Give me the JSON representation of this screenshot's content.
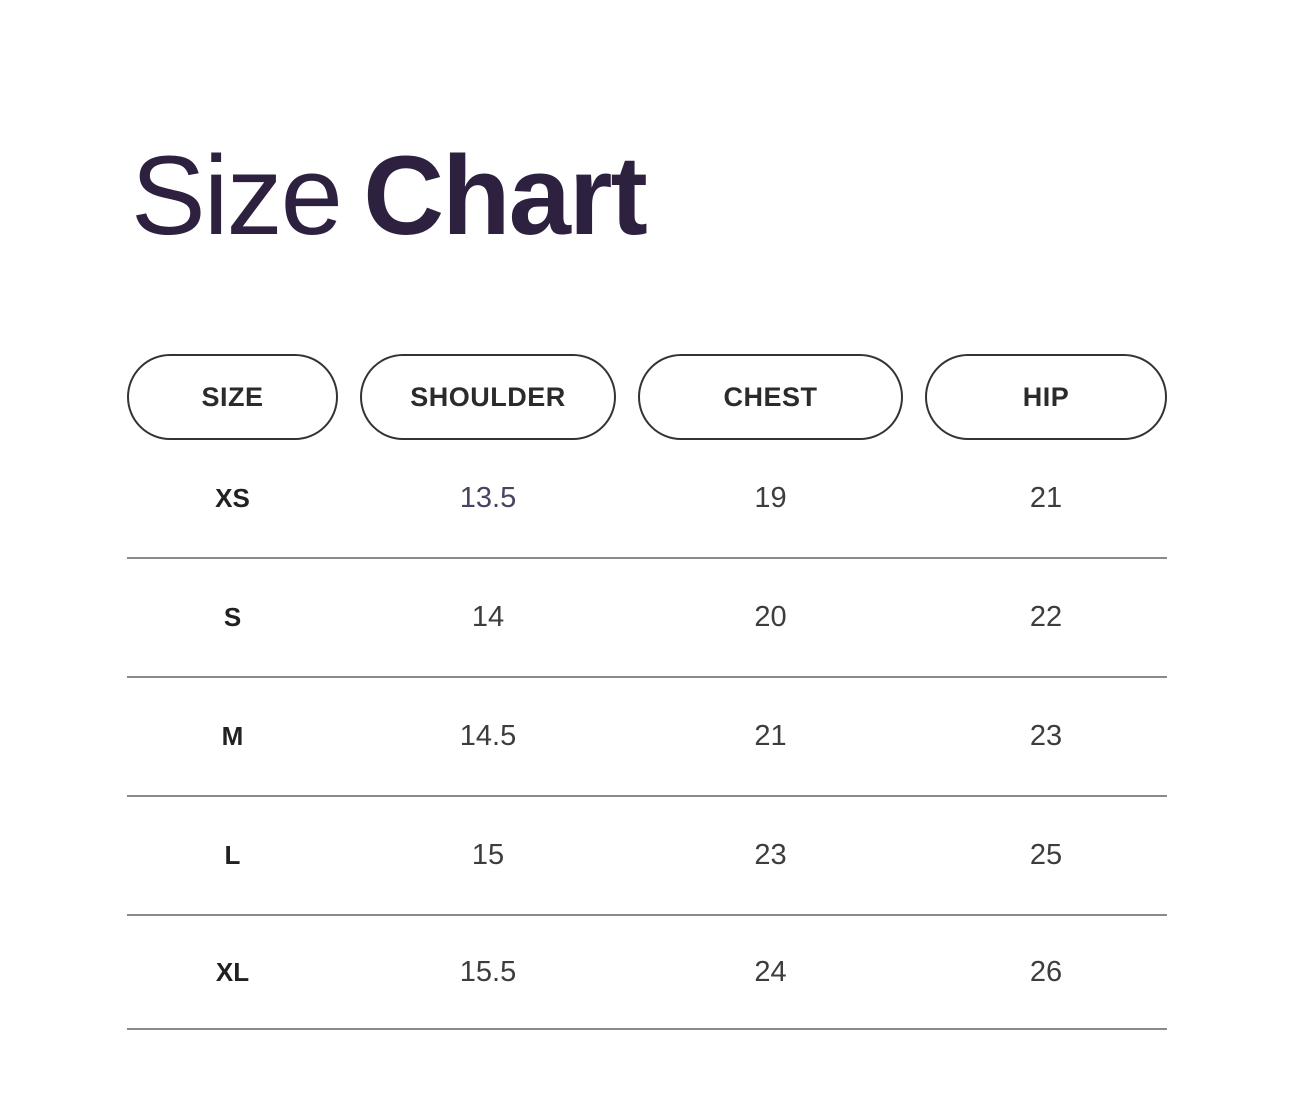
{
  "title": {
    "regular": "Size",
    "bold": "Chart"
  },
  "table": {
    "columns": [
      "SIZE",
      "SHOULDER",
      "CHEST",
      "HIP"
    ],
    "rows": [
      {
        "size": "XS",
        "shoulder": "13.5",
        "chest": "19",
        "hip": "21"
      },
      {
        "size": "S",
        "shoulder": "14",
        "chest": "20",
        "hip": "22"
      },
      {
        "size": "M",
        "shoulder": "14.5",
        "chest": "21",
        "hip": "23"
      },
      {
        "size": "L",
        "shoulder": "15",
        "chest": "23",
        "hip": "25"
      },
      {
        "size": "XL",
        "shoulder": "15.5",
        "chest": "24",
        "hip": "26"
      }
    ]
  },
  "chart_data": {
    "type": "table",
    "title": "Size Chart",
    "columns": [
      "SIZE",
      "SHOULDER",
      "CHEST",
      "HIP"
    ],
    "rows": [
      [
        "XS",
        "13.5",
        "19",
        "21"
      ],
      [
        "S",
        "14",
        "20",
        "22"
      ],
      [
        "M",
        "14.5",
        "21",
        "23"
      ],
      [
        "L",
        "15",
        "23",
        "25"
      ],
      [
        "XL",
        "15.5",
        "24",
        "26"
      ]
    ]
  },
  "colors": {
    "title": "#2e2140",
    "pill-border": "#333333",
    "pill-text": "#2b2b2b",
    "size-label": "#212121",
    "value-text": "#3d3d3d",
    "value-highlight": "#4a4260",
    "divider": "#8a8a8a",
    "background": "#ffffff"
  }
}
